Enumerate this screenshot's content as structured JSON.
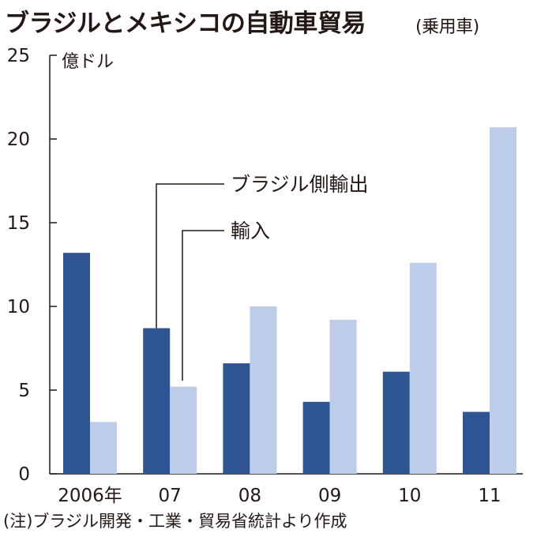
{
  "header": {
    "title": "ブラジルとメキシコの自動車貿易",
    "subtitle": "(乗用車)"
  },
  "unit_label": "億ドル",
  "footnote": "(注)ブラジル開発・工業・貿易省統計より作成",
  "colors": {
    "brazil_export": "#2f5492",
    "import": "#bdcce8",
    "axis": "#231815"
  },
  "chart_data": {
    "type": "bar",
    "title": "ブラジルとメキシコの自動車貿易",
    "subtitle": "(乗用車)",
    "ylabel": "億ドル",
    "xlabel": "",
    "categories": [
      "2006年",
      "07",
      "08",
      "09",
      "10",
      "11"
    ],
    "series": [
      {
        "name": "ブラジル側輸出",
        "values": [
          13.2,
          8.7,
          6.6,
          4.3,
          6.1,
          3.7
        ]
      },
      {
        "name": "輸入",
        "values": [
          3.1,
          5.2,
          10.0,
          9.2,
          12.6,
          20.7
        ]
      }
    ],
    "ylim": [
      0,
      25
    ],
    "yticks": [
      0,
      5,
      10,
      15,
      20,
      25
    ],
    "grid": false,
    "legend": "callout-labels"
  }
}
